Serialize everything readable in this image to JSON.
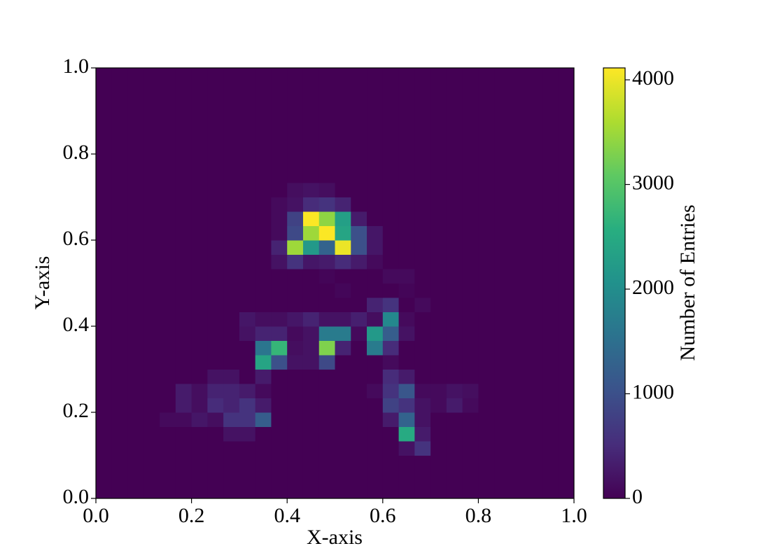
{
  "chart_data": {
    "type": "heatmap",
    "x_label": "X-axis",
    "y_label": "Y-axis",
    "colorbar_label": "Number of Entries",
    "colormap": "viridis",
    "xlim": [
      0,
      1
    ],
    "ylim": [
      0,
      1
    ],
    "xticks": [
      {
        "value": 0,
        "label": "0.0"
      },
      0.2,
      0.4,
      0.6,
      0.8,
      {
        "value": 1,
        "label": "1.0"
      }
    ],
    "yticks": [
      {
        "value": 0,
        "label": "0.0"
      },
      0.2,
      0.4,
      0.6,
      0.8,
      {
        "value": 1,
        "label": "1.0"
      }
    ],
    "zlim": [
      0,
      4114
    ],
    "zticks": [
      0,
      1000,
      2000,
      3000,
      4000
    ],
    "z": [
      [
        0,
        0,
        0,
        0,
        0,
        0,
        0,
        0,
        0,
        0,
        0,
        0,
        0,
        0,
        0,
        0,
        0,
        0,
        0,
        0,
        0,
        0,
        0,
        0,
        0,
        0,
        0,
        0,
        0,
        0
      ],
      [
        0,
        0,
        0,
        0,
        0,
        0,
        0,
        0,
        0,
        0,
        0,
        0,
        0,
        0,
        0,
        0,
        0,
        0,
        0,
        0,
        0,
        0,
        0,
        0,
        0,
        0,
        0,
        0,
        0,
        0
      ],
      [
        0,
        0,
        0,
        0,
        0,
        0,
        0,
        0,
        0,
        0,
        0,
        0,
        0,
        0,
        0,
        0,
        0,
        0,
        0,
        0,
        0,
        0,
        0,
        0,
        0,
        0,
        0,
        0,
        0,
        0
      ],
      [
        0,
        0,
        0,
        0,
        0,
        0,
        0,
        0,
        0,
        0,
        0,
        0,
        0,
        0,
        0,
        0,
        0,
        0,
        0,
        200,
        600,
        0,
        0,
        0,
        0,
        0,
        0,
        0,
        0,
        0
      ],
      [
        0,
        0,
        0,
        0,
        0,
        0,
        0,
        0,
        200,
        200,
        0,
        0,
        0,
        0,
        0,
        0,
        0,
        0,
        0,
        2500,
        300,
        0,
        0,
        0,
        0,
        0,
        0,
        0,
        0,
        0
      ],
      [
        0,
        0,
        0,
        0,
        100,
        100,
        250,
        150,
        600,
        600,
        1200,
        0,
        0,
        0,
        0,
        0,
        0,
        0,
        300,
        1300,
        200,
        0,
        0,
        0,
        0,
        0,
        0,
        0,
        0,
        0
      ],
      [
        0,
        0,
        0,
        0,
        0,
        300,
        150,
        500,
        400,
        600,
        300,
        0,
        0,
        0,
        0,
        0,
        0,
        0,
        800,
        600,
        200,
        100,
        300,
        100,
        0,
        0,
        0,
        0,
        0,
        0
      ],
      [
        0,
        0,
        0,
        0,
        0,
        300,
        150,
        400,
        400,
        300,
        100,
        0,
        0,
        0,
        0,
        0,
        0,
        100,
        600,
        1100,
        100,
        100,
        200,
        150,
        0,
        0,
        0,
        0,
        0,
        0
      ],
      [
        0,
        0,
        0,
        0,
        0,
        0,
        0,
        200,
        200,
        0,
        300,
        0,
        0,
        0,
        0,
        0,
        0,
        0,
        500,
        300,
        0,
        0,
        0,
        0,
        0,
        0,
        0,
        0,
        0,
        0
      ],
      [
        0,
        0,
        0,
        0,
        0,
        0,
        0,
        0,
        0,
        0,
        2400,
        1000,
        200,
        200,
        900,
        0,
        0,
        0,
        100,
        0,
        0,
        0,
        0,
        0,
        0,
        0,
        0,
        0,
        0,
        0
      ],
      [
        0,
        0,
        0,
        0,
        0,
        0,
        0,
        0,
        0,
        0,
        1600,
        2700,
        150,
        200,
        3300,
        400,
        0,
        1700,
        500,
        0,
        0,
        0,
        0,
        0,
        0,
        0,
        0,
        0,
        0,
        0
      ],
      [
        0,
        0,
        0,
        0,
        0,
        0,
        0,
        0,
        0,
        200,
        400,
        400,
        100,
        200,
        1700,
        1700,
        100,
        2200,
        1200,
        200,
        0,
        0,
        0,
        0,
        0,
        0,
        0,
        0,
        0,
        0
      ],
      [
        0,
        0,
        0,
        0,
        0,
        0,
        0,
        0,
        0,
        250,
        150,
        150,
        250,
        400,
        200,
        200,
        350,
        150,
        1900,
        100,
        0,
        0,
        0,
        0,
        0,
        0,
        0,
        0,
        0,
        0
      ],
      [
        0,
        0,
        0,
        0,
        0,
        0,
        0,
        0,
        0,
        0,
        0,
        0,
        0,
        0,
        0,
        0,
        0,
        400,
        600,
        0,
        100,
        0,
        0,
        0,
        0,
        0,
        0,
        0,
        0,
        0
      ],
      [
        0,
        0,
        0,
        0,
        0,
        0,
        0,
        0,
        0,
        0,
        0,
        0,
        0,
        0,
        0,
        60,
        0,
        0,
        0,
        50,
        0,
        0,
        0,
        0,
        0,
        0,
        0,
        0,
        0,
        0
      ],
      [
        0,
        0,
        0,
        0,
        0,
        0,
        0,
        0,
        0,
        0,
        0,
        0,
        0,
        0,
        50,
        0,
        0,
        0,
        100,
        100,
        0,
        0,
        0,
        0,
        0,
        0,
        0,
        0,
        0,
        0
      ],
      [
        0,
        0,
        0,
        0,
        0,
        0,
        0,
        0,
        0,
        0,
        0,
        200,
        600,
        250,
        300,
        500,
        300,
        100,
        0,
        0,
        0,
        0,
        0,
        0,
        0,
        0,
        0,
        0,
        0,
        0
      ],
      [
        0,
        0,
        0,
        0,
        0,
        0,
        0,
        0,
        0,
        0,
        0,
        400,
        3500,
        2200,
        1300,
        4000,
        1000,
        250,
        0,
        0,
        0,
        0,
        0,
        0,
        0,
        0,
        0,
        0,
        0,
        0
      ],
      [
        0,
        0,
        0,
        0,
        0,
        0,
        0,
        0,
        0,
        0,
        0,
        100,
        900,
        3500,
        4100,
        2400,
        1000,
        250,
        0,
        0,
        0,
        0,
        0,
        0,
        0,
        0,
        0,
        0,
        0,
        0
      ],
      [
        0,
        0,
        0,
        0,
        0,
        0,
        0,
        0,
        0,
        0,
        0,
        100,
        800,
        4100,
        3400,
        2300,
        300,
        0,
        0,
        0,
        0,
        0,
        0,
        0,
        0,
        0,
        0,
        0,
        0,
        0
      ],
      [
        0,
        0,
        0,
        0,
        0,
        0,
        0,
        0,
        0,
        0,
        0,
        100,
        200,
        500,
        600,
        400,
        0,
        0,
        0,
        0,
        0,
        0,
        0,
        0,
        0,
        0,
        0,
        0,
        0,
        0
      ],
      [
        0,
        0,
        0,
        0,
        0,
        0,
        0,
        0,
        0,
        0,
        0,
        0,
        150,
        200,
        150,
        0,
        0,
        0,
        0,
        0,
        0,
        0,
        0,
        0,
        0,
        0,
        0,
        0,
        0,
        0
      ],
      [
        0,
        0,
        0,
        0,
        0,
        0,
        0,
        0,
        0,
        0,
        0,
        0,
        0,
        0,
        0,
        0,
        0,
        0,
        0,
        0,
        0,
        0,
        0,
        0,
        0,
        0,
        0,
        0,
        0,
        0
      ],
      [
        0,
        0,
        0,
        0,
        0,
        0,
        0,
        0,
        0,
        0,
        0,
        0,
        0,
        0,
        0,
        0,
        0,
        0,
        0,
        0,
        0,
        0,
        0,
        0,
        0,
        0,
        0,
        0,
        0,
        0
      ],
      [
        0,
        0,
        0,
        0,
        0,
        0,
        0,
        0,
        0,
        0,
        0,
        0,
        0,
        0,
        0,
        0,
        0,
        0,
        0,
        0,
        0,
        0,
        0,
        0,
        0,
        0,
        0,
        0,
        0,
        0
      ],
      [
        0,
        0,
        0,
        0,
        0,
        0,
        0,
        0,
        0,
        0,
        0,
        0,
        0,
        0,
        0,
        0,
        0,
        0,
        0,
        0,
        0,
        0,
        0,
        0,
        0,
        0,
        0,
        0,
        0,
        0
      ],
      [
        0,
        0,
        0,
        0,
        0,
        0,
        0,
        0,
        0,
        0,
        0,
        0,
        0,
        0,
        0,
        0,
        0,
        0,
        0,
        0,
        0,
        0,
        0,
        0,
        0,
        0,
        0,
        0,
        0,
        0
      ],
      [
        0,
        0,
        0,
        0,
        0,
        0,
        0,
        0,
        0,
        0,
        0,
        0,
        0,
        0,
        0,
        0,
        0,
        0,
        0,
        0,
        0,
        0,
        0,
        0,
        0,
        0,
        0,
        0,
        0,
        0
      ],
      [
        0,
        0,
        0,
        0,
        0,
        0,
        0,
        0,
        0,
        0,
        0,
        0,
        0,
        0,
        0,
        0,
        0,
        0,
        0,
        0,
        0,
        0,
        0,
        0,
        0,
        0,
        0,
        0,
        0,
        0
      ],
      [
        0,
        0,
        0,
        0,
        0,
        0,
        0,
        0,
        0,
        0,
        0,
        0,
        0,
        0,
        0,
        0,
        0,
        0,
        0,
        0,
        0,
        0,
        0,
        0,
        0,
        0,
        0,
        0,
        0,
        0
      ]
    ]
  }
}
